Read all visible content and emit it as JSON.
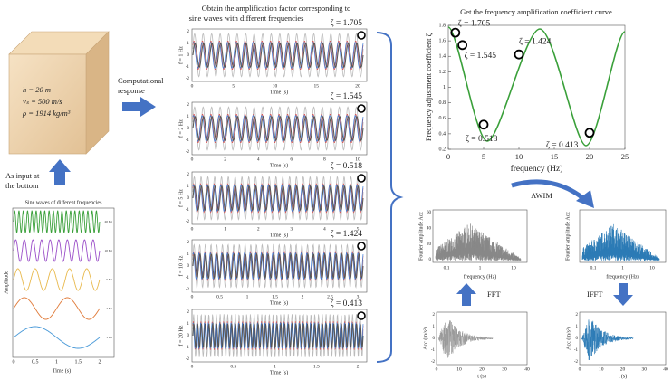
{
  "model": {
    "h": "h = 20 m",
    "vs": "vₛ = 500 m/s",
    "rho": "ρ = 1914 kg/m³"
  },
  "input_label": [
    "As input at",
    "the bottom"
  ],
  "sine_panel": {
    "title": "Sine waves of different frequencies",
    "ylabel": "Amplitude",
    "xlabel": "Time (s)",
    "xticks": [
      "0",
      "0.5",
      "1",
      "1.5",
      "2"
    ],
    "legend": [
      "20 Hz",
      "10 Hz",
      "5 Hz",
      "2 Hz",
      "1 Hz"
    ]
  },
  "response_label": [
    "Computational",
    "response"
  ],
  "middle_title": [
    "Obtain the amplification  factor corresponding to",
    "sine waves with different frequencies"
  ],
  "response_yticks": [
    "2",
    "1",
    "0",
    "-1",
    "-2"
  ],
  "responses": [
    {
      "freq": "f = 1 Hz",
      "zeta": "ζ = 1.705",
      "xlabel": "Time (s)",
      "xticks": [
        "0",
        "5",
        "10",
        "15",
        "20"
      ]
    },
    {
      "freq": "f = 2 Hz",
      "zeta": "ζ = 1.545",
      "xlabel": "Time (s)",
      "xticks": [
        "0",
        "2",
        "4",
        "6",
        "8",
        "10"
      ]
    },
    {
      "freq": "f = 5 Hz",
      "zeta": "ζ = 0.518",
      "xlabel": "Time (s)",
      "xticks": [
        "0",
        "1",
        "2",
        "3",
        "4",
        "5"
      ]
    },
    {
      "freq": "f = 10 Hz",
      "zeta": "ζ = 1.424",
      "xlabel": "Time (s)",
      "xticks": [
        "0",
        "0.5",
        "1",
        "1.5",
        "2",
        "2.5",
        "3"
      ]
    },
    {
      "freq": "f = 20 Hz",
      "zeta": "ζ = 0.413",
      "xlabel": "Time (s)",
      "xticks": [
        "0",
        "0.5",
        "1",
        "1.5",
        "2"
      ]
    }
  ],
  "curve": {
    "title": "Get the frequency amplification coefficient curve",
    "ylabel": "Frequency adjustment coefficient ζ",
    "xlabel": "frequency (Hz)",
    "xlim": [
      0,
      25
    ],
    "ylim": [
      0.2,
      1.8
    ],
    "xticks": [
      0,
      5,
      10,
      15,
      20,
      25
    ],
    "yticks": [
      0.2,
      0.4,
      0.6,
      0.8,
      1,
      1.2,
      1.4,
      1.6,
      1.8
    ],
    "points_x": [
      1,
      2,
      5,
      10,
      20
    ],
    "points_y": [
      1.705,
      1.545,
      0.518,
      1.424,
      0.413
    ],
    "point_labels": [
      "ζ = 1.705",
      "ζ = 1.545",
      "ζ = 0.518",
      "ζ = 1.424",
      "ζ = 0.413"
    ]
  },
  "awim": "AWIM",
  "fft": "FFT",
  "ifft": "IFFT",
  "fourier": {
    "ylabel": "Fourier amplitude Acc",
    "xlabel": "frequency (Hz)",
    "xticks": [
      "0.1",
      "1",
      "10"
    ],
    "yticks": [
      "60",
      "40",
      "20",
      "0"
    ]
  },
  "acc": {
    "ylabel": "Acc (m/s²)",
    "xlabel": "t (s)",
    "xticks": [
      "0",
      "10",
      "20",
      "30",
      "40"
    ],
    "yticks": [
      "2",
      "1",
      "0",
      "-1",
      "-2"
    ]
  }
}
